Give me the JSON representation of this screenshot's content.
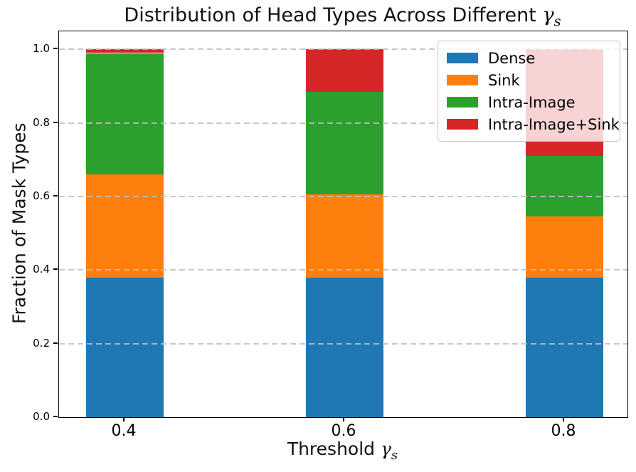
{
  "chart_data": {
    "type": "bar",
    "stacked": true,
    "title": "Distribution of Head Types Across Different γs",
    "title_parts": {
      "prefix": "Distribution of Head Types Across Different ",
      "gamma": "γ",
      "subscript": "s"
    },
    "xlabel": "Threshold γs",
    "xlabel_parts": {
      "prefix": "Threshold ",
      "gamma": "γ",
      "subscript": "s"
    },
    "ylabel": "Fraction of Mask Types",
    "categories": [
      "0.4",
      "0.6",
      "0.8"
    ],
    "series": [
      {
        "name": "Dense",
        "color": "#1f77b4",
        "values": [
          0.38,
          0.38,
          0.38
        ]
      },
      {
        "name": "Sink",
        "color": "#ff7f0e",
        "values": [
          0.28,
          0.225,
          0.165
        ]
      },
      {
        "name": "Intra-Image",
        "color": "#2ca02c",
        "values": [
          0.33,
          0.28,
          0.165
        ]
      },
      {
        "name": "Intra-Image+Sink",
        "color": "#d62728",
        "values": [
          0.01,
          0.115,
          0.29
        ]
      }
    ],
    "yticks": [
      "0.0",
      "0.2",
      "0.4",
      "0.6",
      "0.8",
      "1.0"
    ],
    "ylim": [
      0.0,
      1.049
    ],
    "grid": {
      "axis": "y",
      "style": "dashed",
      "color": "#bebebe",
      "on_top_of_bars": true
    },
    "legend": {
      "position": "upper right",
      "background": "rgba(255,255,255,0.8)",
      "border_color": "#c6c6c6"
    }
  }
}
